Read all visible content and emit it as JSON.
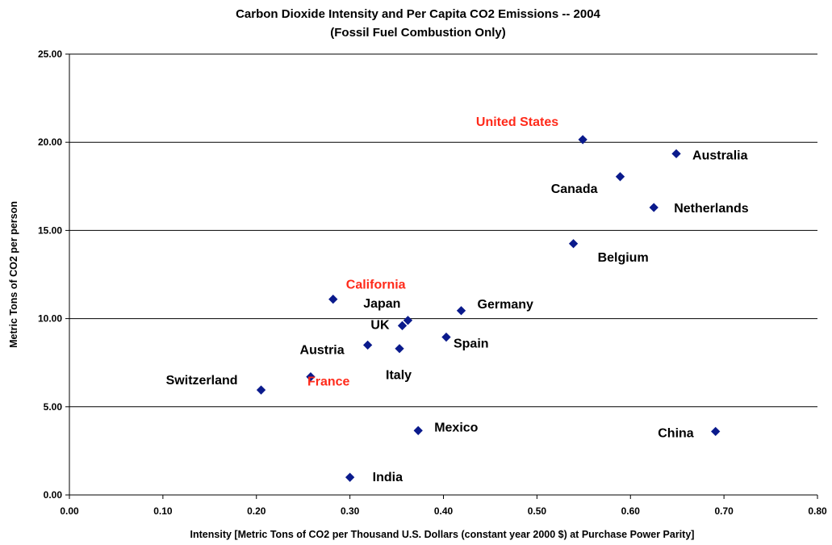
{
  "chart_data": {
    "type": "scatter",
    "title": "Carbon Dioxide Intensity and Per Capita CO2 Emissions -- 2004",
    "subtitle": "(Fossil Fuel Combustion Only)",
    "xlabel": "Intensity [Metric Tons of CO2 per Thousand U.S. Dollars (constant  year 2000 $) at Purchase Power Parity]",
    "ylabel": "Metric Tons of CO2 per person",
    "xlim": [
      0,
      0.8
    ],
    "ylim": [
      0,
      25
    ],
    "x_ticks": [
      "0.00",
      "0.10",
      "0.20",
      "0.30",
      "0.40",
      "0.50",
      "0.60",
      "0.70",
      "0.80"
    ],
    "y_ticks": [
      "0.00",
      "5.00",
      "10.00",
      "15.00",
      "20.00",
      "25.00"
    ],
    "grid": "horizontal",
    "marker_color": "#0A1A8C",
    "default_label_color": "#000000",
    "highlight_label_color": "#FF2A1A",
    "points": [
      {
        "label": "United States",
        "x": 0.549,
        "y": 20.15,
        "highlight": true
      },
      {
        "label": "Australia",
        "x": 0.649,
        "y": 19.35,
        "highlight": false
      },
      {
        "label": "Canada",
        "x": 0.589,
        "y": 18.05,
        "highlight": false
      },
      {
        "label": "Netherlands",
        "x": 0.625,
        "y": 16.3,
        "highlight": false
      },
      {
        "label": "Belgium",
        "x": 0.539,
        "y": 14.25,
        "highlight": false
      },
      {
        "label": "California",
        "x": 0.282,
        "y": 11.1,
        "highlight": true
      },
      {
        "label": "Germany",
        "x": 0.419,
        "y": 10.45,
        "highlight": false
      },
      {
        "label": "Japan",
        "x": 0.362,
        "y": 9.9,
        "highlight": false
      },
      {
        "label": "UK",
        "x": 0.356,
        "y": 9.6,
        "highlight": false
      },
      {
        "label": "Spain",
        "x": 0.403,
        "y": 8.95,
        "highlight": false
      },
      {
        "label": "Austria",
        "x": 0.319,
        "y": 8.5,
        "highlight": false
      },
      {
        "label": "Italy",
        "x": 0.353,
        "y": 8.3,
        "highlight": false
      },
      {
        "label": "France",
        "x": 0.258,
        "y": 6.7,
        "highlight": true
      },
      {
        "label": "Switzerland",
        "x": 0.205,
        "y": 5.95,
        "highlight": false
      },
      {
        "label": "Mexico",
        "x": 0.373,
        "y": 3.65,
        "highlight": false
      },
      {
        "label": "China",
        "x": 0.691,
        "y": 3.6,
        "highlight": false
      },
      {
        "label": "India",
        "x": 0.3,
        "y": 1.0,
        "highlight": false
      }
    ]
  }
}
